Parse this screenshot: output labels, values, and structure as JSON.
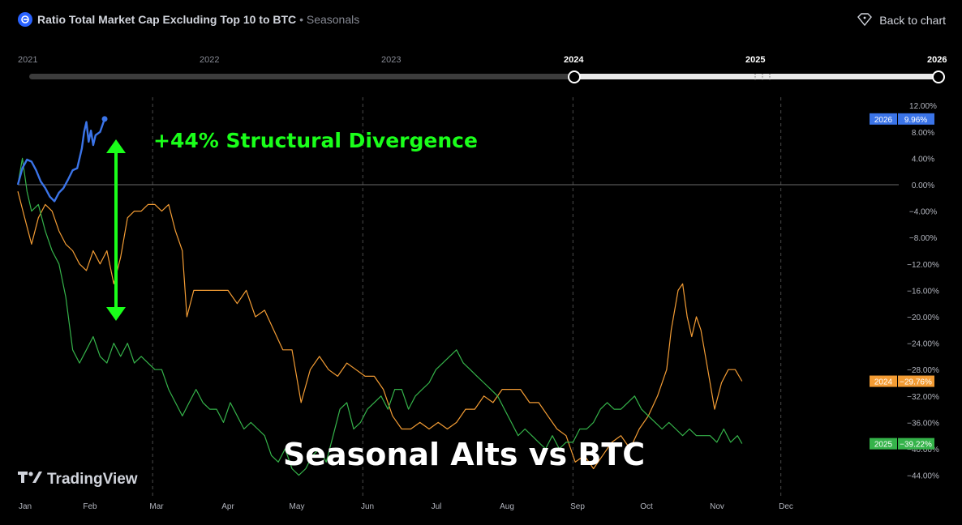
{
  "header": {
    "title": "Ratio Total Market Cap Excluding Top 10 to BTC",
    "subtitle": "• Seasonals",
    "back_label": "Back to chart"
  },
  "timeline": {
    "years": [
      "2021",
      "2022",
      "2023",
      "2024",
      "2025",
      "2026"
    ],
    "selected_start": "2024",
    "selected_end": "2026"
  },
  "watermark": "TradingView",
  "icons": {
    "symbol": "symbol-logo-icon",
    "back": "tag-back-icon",
    "watermark": "tradingview-logo-icon",
    "grip": "grip-dots-icon"
  },
  "chart_data": {
    "type": "line",
    "title": "Seasonal Alts vs BTC",
    "annotation": "+44% Structural Divergence",
    "x_axis_labels": [
      "Jan",
      "Feb",
      "Mar",
      "Apr",
      "May",
      "Jun",
      "Jul",
      "Aug",
      "Sep",
      "Oct",
      "Nov",
      "Dec"
    ],
    "y_axis_ticks": [
      "12.00%",
      "8.00%",
      "4.00%",
      "0.00%",
      "−4.00%",
      "−8.00%",
      "−12.00%",
      "−16.00%",
      "−20.00%",
      "−24.00%",
      "−28.00%",
      "−32.00%",
      "−36.00%",
      "−40.00%",
      "−44.00%"
    ],
    "ylim": [
      -45,
      13
    ],
    "x_unit": "day of year",
    "grid": "dashed vertical lines at quarter boundaries",
    "series": [
      {
        "name": "2026",
        "color": "#3b74e8",
        "last_label": "9.96%",
        "points": [
          [
            0,
            0
          ],
          [
            2,
            2.5
          ],
          [
            4,
            3.8
          ],
          [
            6,
            3.5
          ],
          [
            8,
            2.2
          ],
          [
            10,
            0.5
          ],
          [
            12,
            -0.5
          ],
          [
            14,
            -1.8
          ],
          [
            16,
            -2.5
          ],
          [
            18,
            -1.2
          ],
          [
            20,
            -0.5
          ],
          [
            22,
            0.8
          ],
          [
            24,
            2.2
          ],
          [
            26,
            2.5
          ],
          [
            28,
            5.5
          ],
          [
            29,
            8.0
          ],
          [
            30,
            9.5
          ],
          [
            31,
            6.5
          ],
          [
            32,
            8.2
          ],
          [
            33,
            6.0
          ],
          [
            34,
            7.5
          ],
          [
            36,
            8.0
          ],
          [
            38,
            9.96
          ]
        ]
      },
      {
        "name": "2024",
        "color": "#f39c34",
        "last_label": "−29.76%",
        "points": [
          [
            0,
            -1
          ],
          [
            3,
            -5
          ],
          [
            6,
            -9
          ],
          [
            9,
            -5
          ],
          [
            12,
            -3
          ],
          [
            15,
            -4
          ],
          [
            18,
            -7
          ],
          [
            21,
            -9
          ],
          [
            24,
            -10
          ],
          [
            27,
            -12
          ],
          [
            30,
            -13
          ],
          [
            33,
            -10
          ],
          [
            36,
            -12
          ],
          [
            39,
            -10
          ],
          [
            42,
            -15
          ],
          [
            45,
            -11
          ],
          [
            48,
            -5
          ],
          [
            51,
            -4
          ],
          [
            54,
            -4
          ],
          [
            57,
            -3
          ],
          [
            60,
            -3
          ],
          [
            63,
            -4
          ],
          [
            66,
            -3
          ],
          [
            69,
            -7
          ],
          [
            72,
            -10
          ],
          [
            74,
            -20
          ],
          [
            77,
            -16
          ],
          [
            80,
            -16
          ],
          [
            84,
            -16
          ],
          [
            88,
            -16
          ],
          [
            92,
            -16
          ],
          [
            96,
            -18
          ],
          [
            100,
            -16
          ],
          [
            104,
            -20
          ],
          [
            108,
            -19
          ],
          [
            112,
            -22
          ],
          [
            116,
            -25
          ],
          [
            120,
            -25
          ],
          [
            124,
            -33
          ],
          [
            128,
            -28
          ],
          [
            132,
            -26
          ],
          [
            136,
            -28
          ],
          [
            140,
            -29
          ],
          [
            144,
            -27
          ],
          [
            148,
            -28
          ],
          [
            152,
            -29
          ],
          [
            156,
            -29
          ],
          [
            160,
            -31
          ],
          [
            164,
            -35
          ],
          [
            168,
            -37
          ],
          [
            172,
            -37
          ],
          [
            176,
            -36
          ],
          [
            180,
            -37
          ],
          [
            184,
            -36
          ],
          [
            188,
            -37
          ],
          [
            192,
            -36
          ],
          [
            196,
            -34
          ],
          [
            200,
            -34
          ],
          [
            204,
            -32
          ],
          [
            208,
            -33
          ],
          [
            212,
            -31
          ],
          [
            216,
            -31
          ],
          [
            220,
            -31
          ],
          [
            224,
            -33
          ],
          [
            228,
            -33
          ],
          [
            232,
            -35
          ],
          [
            236,
            -37
          ],
          [
            240,
            -38
          ],
          [
            244,
            -42
          ],
          [
            248,
            -41
          ],
          [
            252,
            -43
          ],
          [
            256,
            -41
          ],
          [
            260,
            -39
          ],
          [
            264,
            -38
          ],
          [
            268,
            -40
          ],
          [
            272,
            -37
          ],
          [
            276,
            -35
          ],
          [
            280,
            -32
          ],
          [
            284,
            -28
          ],
          [
            286,
            -22
          ],
          [
            289,
            -16
          ],
          [
            291,
            -15
          ],
          [
            293,
            -20
          ],
          [
            295,
            -23
          ],
          [
            297,
            -20
          ],
          [
            299,
            -22
          ],
          [
            302,
            -28
          ],
          [
            305,
            -34
          ],
          [
            308,
            -30
          ],
          [
            311,
            -28
          ],
          [
            314,
            -28
          ],
          [
            317,
            -29.76
          ]
        ]
      },
      {
        "name": "2025",
        "color": "#35b34a",
        "last_label": "−39.22%",
        "points": [
          [
            0,
            0
          ],
          [
            2,
            4
          ],
          [
            4,
            -1
          ],
          [
            6,
            -4
          ],
          [
            9,
            -3
          ],
          [
            12,
            -7
          ],
          [
            15,
            -10
          ],
          [
            18,
            -12
          ],
          [
            21,
            -17
          ],
          [
            24,
            -25
          ],
          [
            27,
            -27
          ],
          [
            30,
            -25
          ],
          [
            33,
            -23
          ],
          [
            36,
            -26
          ],
          [
            39,
            -27
          ],
          [
            42,
            -24
          ],
          [
            45,
            -26
          ],
          [
            48,
            -24
          ],
          [
            51,
            -27
          ],
          [
            54,
            -26
          ],
          [
            57,
            -27
          ],
          [
            60,
            -28
          ],
          [
            63,
            -28
          ],
          [
            66,
            -31
          ],
          [
            69,
            -33
          ],
          [
            72,
            -35
          ],
          [
            75,
            -33
          ],
          [
            78,
            -31
          ],
          [
            81,
            -33
          ],
          [
            84,
            -34
          ],
          [
            87,
            -34
          ],
          [
            90,
            -36
          ],
          [
            93,
            -33
          ],
          [
            96,
            -35
          ],
          [
            99,
            -37
          ],
          [
            102,
            -36
          ],
          [
            105,
            -37
          ],
          [
            108,
            -38
          ],
          [
            111,
            -41
          ],
          [
            114,
            -42
          ],
          [
            117,
            -40
          ],
          [
            120,
            -43
          ],
          [
            123,
            -44
          ],
          [
            126,
            -43
          ],
          [
            129,
            -41
          ],
          [
            132,
            -40
          ],
          [
            135,
            -42
          ],
          [
            138,
            -38
          ],
          [
            141,
            -34
          ],
          [
            144,
            -33
          ],
          [
            147,
            -37
          ],
          [
            150,
            -36
          ],
          [
            153,
            -34
          ],
          [
            156,
            -33
          ],
          [
            159,
            -32
          ],
          [
            162,
            -34
          ],
          [
            165,
            -31
          ],
          [
            168,
            -31
          ],
          [
            171,
            -34
          ],
          [
            174,
            -32
          ],
          [
            177,
            -31
          ],
          [
            180,
            -30
          ],
          [
            183,
            -28
          ],
          [
            186,
            -27
          ],
          [
            189,
            -26
          ],
          [
            192,
            -25
          ],
          [
            195,
            -27
          ],
          [
            198,
            -28
          ],
          [
            201,
            -29
          ],
          [
            204,
            -30
          ],
          [
            207,
            -31
          ],
          [
            210,
            -32
          ],
          [
            213,
            -34
          ],
          [
            216,
            -36
          ],
          [
            219,
            -38
          ],
          [
            222,
            -37
          ],
          [
            225,
            -38
          ],
          [
            228,
            -39
          ],
          [
            231,
            -40
          ],
          [
            234,
            -38
          ],
          [
            237,
            -40
          ],
          [
            240,
            -39
          ],
          [
            243,
            -39
          ],
          [
            246,
            -37
          ],
          [
            249,
            -37
          ],
          [
            252,
            -36
          ],
          [
            255,
            -34
          ],
          [
            258,
            -33
          ],
          [
            261,
            -34
          ],
          [
            264,
            -34
          ],
          [
            267,
            -33
          ],
          [
            270,
            -32
          ],
          [
            273,
            -34
          ],
          [
            276,
            -35
          ],
          [
            279,
            -36
          ],
          [
            282,
            -37
          ],
          [
            285,
            -36
          ],
          [
            288,
            -37
          ],
          [
            291,
            -38
          ],
          [
            294,
            -37
          ],
          [
            297,
            -38
          ],
          [
            300,
            -38
          ],
          [
            303,
            -38
          ],
          [
            306,
            -39
          ],
          [
            309,
            -37
          ],
          [
            312,
            -39
          ],
          [
            315,
            -38
          ],
          [
            317,
            -39.22
          ]
        ]
      }
    ]
  }
}
